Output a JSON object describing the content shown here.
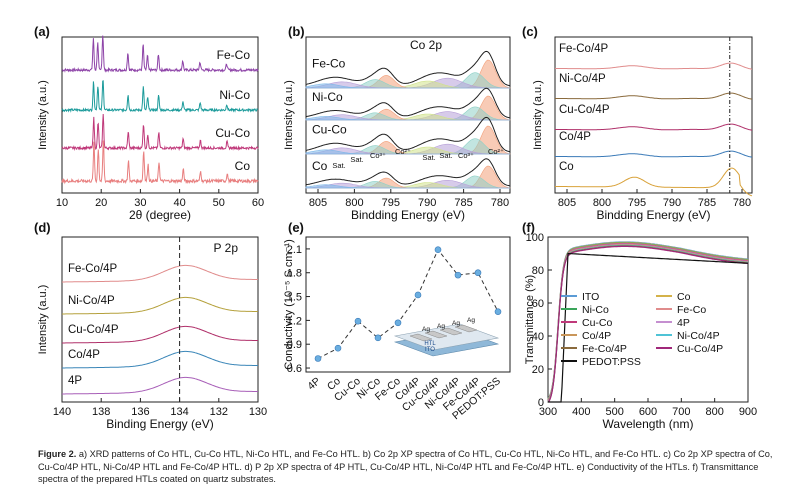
{
  "figure": {
    "caption_label": "Figure 2.",
    "caption_text": "a) XRD patterns of Co HTL, Cu-Co HTL, Ni-Co HTL, and Fe-Co HTL. b) Co 2p XP spectra of Co HTL, Cu-Co HTL, Ni-Co HTL, and Fe-Co HTL. c) Co 2p XP spectra of Co, Cu-Co/4P HTL, Ni-Co/4P HTL and Fe-Co/4P HTL. d) P 2p XP spectra of 4P HTL, Cu-Co/4P HTL, Ni-Co/4P HTL and Fe-Co/4P HTL. e) Conductivity of the HTLs. f) Transmittance spectra of the prepared HTLs coated on quartz substrates."
  },
  "chart_data": [
    {
      "id": "a",
      "panel_label": "(a)",
      "type": "line",
      "xlabel": "2θ  (degree)",
      "ylabel": "Intensity (a.u.)",
      "xlim": [
        10,
        60
      ],
      "xticks": [
        "10",
        "20",
        "30",
        "40",
        "50",
        "60"
      ],
      "peaks": [
        18.0,
        19.1,
        20.4,
        26.8,
        30.7,
        31.8,
        34.6,
        40.8,
        45.2,
        52.0
      ],
      "series": [
        {
          "name": "Fe-Co",
          "color": "#8e44a8"
        },
        {
          "name": "Ni-Co",
          "color": "#1c9b9b"
        },
        {
          "name": "Cu-Co",
          "color": "#c0397a"
        },
        {
          "name": "Co",
          "color": "#e87f7f"
        }
      ]
    },
    {
      "id": "b",
      "panel_label": "(b)",
      "type": "line",
      "title": "Co 2p",
      "xlabel": "Bindding Energy (eV)",
      "ylabel": "Intensity (a.u.)",
      "xlim": [
        808,
        777
      ],
      "xticks": [
        "805",
        "800",
        "795",
        "790",
        "785",
        "780"
      ],
      "series": [
        {
          "name": "Fe-Co"
        },
        {
          "name": "Ni-Co"
        },
        {
          "name": "Cu-Co"
        },
        {
          "name": "Co"
        }
      ],
      "annotations": [
        "Sat.",
        "Sat.",
        "Co³⁺",
        "Co²⁺",
        "Sat.",
        "Sat.",
        "Co³⁺",
        "Co²⁺"
      ]
    },
    {
      "id": "c",
      "panel_label": "(c)",
      "type": "line",
      "xlabel": "Bindding Energy (eV)",
      "ylabel": "Intensity (a.u.)",
      "xlim": [
        808,
        777
      ],
      "xticks": [
        "805",
        "800",
        "795",
        "790",
        "785",
        "780"
      ],
      "reference_line": 780.5,
      "series": [
        {
          "name": "Fe-Co/4P",
          "color": "#e08c8c"
        },
        {
          "name": "Ni-Co/4P",
          "color": "#8a6a3c"
        },
        {
          "name": "Cu-Co/4P",
          "color": "#b0306a"
        },
        {
          "name": "Co/4P",
          "color": "#3a7ab8"
        },
        {
          "name": "Co",
          "color": "#d9a23a"
        }
      ]
    },
    {
      "id": "d",
      "panel_label": "(d)",
      "type": "line",
      "title": "P 2p",
      "xlabel": "Binding Energy (eV)",
      "ylabel": "Intensity (a.u.)",
      "xlim": [
        140,
        130
      ],
      "xticks": [
        "140",
        "138",
        "136",
        "134",
        "132",
        "130"
      ],
      "reference_line": 134,
      "series": [
        {
          "name": "Fe-Co/4P",
          "color": "#e08c8c"
        },
        {
          "name": "Ni-Co/4P",
          "color": "#b5a13c"
        },
        {
          "name": "Cu-Co/4P",
          "color": "#b0306a"
        },
        {
          "name": "Co/4P",
          "color": "#3a86b8"
        },
        {
          "name": "4P",
          "color": "#a85fb8"
        }
      ]
    },
    {
      "id": "e",
      "panel_label": "(e)",
      "type": "scatter",
      "ylabel": "Conductivity (10⁻⁵ S cm⁻¹)",
      "ylim": [
        0.55,
        2.25
      ],
      "yticks": [
        "0.6",
        "0.9",
        "1.2",
        "1.5",
        "1.8",
        "2.1"
      ],
      "categories": [
        "4P",
        "Co",
        "Cu-Co",
        "Ni-Co",
        "Fe-Co",
        "Co/4P",
        "Cu-Co/4P",
        "Ni-Co/4P",
        "Fe-Co/4P",
        "PEDOT:PSS"
      ],
      "values": [
        0.72,
        0.85,
        1.19,
        0.98,
        1.17,
        1.52,
        2.09,
        1.77,
        1.8,
        1.31
      ],
      "inset_labels": [
        "Ag",
        "Ag",
        "Ag",
        "Ag",
        "HTL",
        "ITO"
      ]
    },
    {
      "id": "f",
      "panel_label": "(f)",
      "type": "line",
      "xlabel": "Wavelength (nm)",
      "ylabel": "Transmittance (%)",
      "xlim": [
        300,
        900
      ],
      "ylim": [
        0,
        100
      ],
      "xticks": [
        "300",
        "400",
        "500",
        "600",
        "700",
        "800",
        "900"
      ],
      "yticks": [
        "0",
        "20",
        "40",
        "60",
        "80",
        "100"
      ],
      "legend": "inside-lower",
      "series": [
        {
          "name": "ITO",
          "color": "#5b9bd5"
        },
        {
          "name": "Co",
          "color": "#d4b24a"
        },
        {
          "name": "Ni-Co",
          "color": "#3aa55a"
        },
        {
          "name": "Fe-Co",
          "color": "#e08c8c"
        },
        {
          "name": "Cu-Co",
          "color": "#c0397a"
        },
        {
          "name": "4P",
          "color": "#c58fd0"
        },
        {
          "name": "Co/4P",
          "color": "#c9965a"
        },
        {
          "name": "Ni-Co/4P",
          "color": "#4fc3d6"
        },
        {
          "name": "Fe-Co/4P",
          "color": "#8a6a3c"
        },
        {
          "name": "Cu-Co/4P",
          "color": "#a0287a"
        },
        {
          "name": "PEDOT:PSS",
          "color": "#111111"
        }
      ]
    }
  ]
}
